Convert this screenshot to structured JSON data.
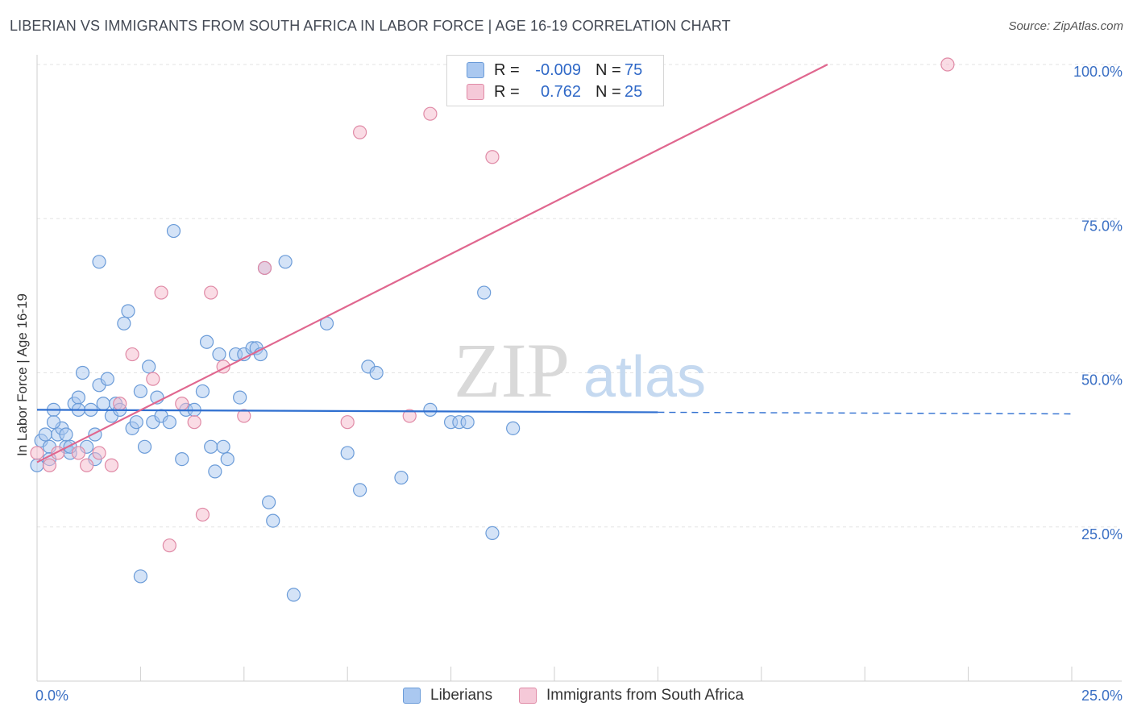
{
  "title": "LIBERIAN VS IMMIGRANTS FROM SOUTH AFRICA IN LABOR FORCE | AGE 16-19 CORRELATION CHART",
  "source": "Source: ZipAtlas.com",
  "watermark": {
    "zip": "ZIP",
    "atlas": "atlas"
  },
  "legend": {
    "rows": [
      {
        "r_label": "R =",
        "r_value": "-0.009",
        "n_label": "N =",
        "n_value": "75",
        "color": "#aac8f0"
      },
      {
        "r_label": "R =",
        "r_value": "0.762",
        "n_label": "N =",
        "n_value": "25",
        "color": "#f5b9cc"
      }
    ]
  },
  "bottom_legend": {
    "series1": "Liberians",
    "series2": "Immigrants from South Africa"
  },
  "chart_data": {
    "type": "scatter",
    "title": "LIBERIAN VS IMMIGRANTS FROM SOUTH AFRICA IN LABOR FORCE | AGE 16-19 CORRELATION CHART",
    "xlabel": "",
    "ylabel": "In Labor Force | Age 16-19",
    "xlim": [
      0,
      25
    ],
    "ylim": [
      0,
      100
    ],
    "x_tick_labels": [
      "0.0%",
      "25.0%"
    ],
    "y_ticks": [
      25,
      50,
      75,
      100
    ],
    "y_tick_labels": [
      "25.0%",
      "50.0%",
      "75.0%",
      "100.0%"
    ],
    "grid": true,
    "series": [
      {
        "name": "Liberians",
        "color": "#aac8f0",
        "stroke": "#6a9bd8",
        "line_color": "#2f6fd0",
        "trend": {
          "x0": 0,
          "y0": 44.0,
          "x1": 15,
          "y1": 43.6,
          "dash_to_x": 25
        },
        "points": [
          [
            0.0,
            35
          ],
          [
            0.1,
            39
          ],
          [
            0.2,
            40
          ],
          [
            0.3,
            38
          ],
          [
            0.4,
            44
          ],
          [
            0.5,
            40
          ],
          [
            0.6,
            41
          ],
          [
            0.7,
            38
          ],
          [
            0.8,
            37
          ],
          [
            0.9,
            45
          ],
          [
            1.0,
            46
          ],
          [
            1.1,
            50
          ],
          [
            1.0,
            44
          ],
          [
            1.2,
            38
          ],
          [
            1.3,
            44
          ],
          [
            1.4,
            36
          ],
          [
            1.5,
            48
          ],
          [
            1.6,
            45
          ],
          [
            1.7,
            49
          ],
          [
            1.8,
            43
          ],
          [
            1.5,
            68
          ],
          [
            1.9,
            45
          ],
          [
            2.0,
            44
          ],
          [
            2.1,
            58
          ],
          [
            2.2,
            60
          ],
          [
            2.3,
            41
          ],
          [
            2.4,
            42
          ],
          [
            2.5,
            47
          ],
          [
            2.6,
            38
          ],
          [
            2.7,
            51
          ],
          [
            2.8,
            42
          ],
          [
            2.9,
            46
          ],
          [
            3.0,
            43
          ],
          [
            3.2,
            42
          ],
          [
            3.3,
            73
          ],
          [
            3.5,
            36
          ],
          [
            3.6,
            44
          ],
          [
            3.8,
            44
          ],
          [
            4.0,
            47
          ],
          [
            4.1,
            55
          ],
          [
            4.2,
            38
          ],
          [
            4.3,
            34
          ],
          [
            4.4,
            53
          ],
          [
            4.5,
            38
          ],
          [
            4.6,
            36
          ],
          [
            4.8,
            53
          ],
          [
            4.9,
            46
          ],
          [
            5.0,
            53
          ],
          [
            5.2,
            54
          ],
          [
            5.3,
            54
          ],
          [
            5.4,
            53
          ],
          [
            5.5,
            67
          ],
          [
            5.6,
            29
          ],
          [
            5.7,
            26
          ],
          [
            6.0,
            68
          ],
          [
            6.2,
            14
          ],
          [
            7.0,
            58
          ],
          [
            7.5,
            37
          ],
          [
            7.8,
            31
          ],
          [
            8.0,
            51
          ],
          [
            8.2,
            50
          ],
          [
            8.8,
            33
          ],
          [
            9.5,
            44
          ],
          [
            10.0,
            42
          ],
          [
            10.2,
            42
          ],
          [
            10.4,
            42
          ],
          [
            10.8,
            63
          ],
          [
            11.0,
            24
          ],
          [
            11.5,
            41
          ],
          [
            0.7,
            40
          ],
          [
            1.4,
            40
          ],
          [
            2.5,
            17
          ],
          [
            0.8,
            38
          ],
          [
            0.3,
            36
          ],
          [
            0.4,
            42
          ]
        ]
      },
      {
        "name": "Immigrants from South Africa",
        "color": "#f5b9cc",
        "stroke": "#e08aa6",
        "line_color": "#e0678f",
        "trend": {
          "x0": 0,
          "y0": 35.5,
          "x1": 19.1,
          "y1": 100
        },
        "points": [
          [
            0.0,
            37
          ],
          [
            0.3,
            35
          ],
          [
            0.5,
            37
          ],
          [
            1.0,
            37
          ],
          [
            1.2,
            35
          ],
          [
            1.5,
            37
          ],
          [
            1.8,
            35
          ],
          [
            2.0,
            45
          ],
          [
            2.3,
            53
          ],
          [
            2.8,
            49
          ],
          [
            3.0,
            63
          ],
          [
            3.2,
            22
          ],
          [
            3.5,
            45
          ],
          [
            3.8,
            42
          ],
          [
            4.0,
            27
          ],
          [
            4.2,
            63
          ],
          [
            4.5,
            51
          ],
          [
            5.0,
            43
          ],
          [
            5.5,
            67
          ],
          [
            7.5,
            42
          ],
          [
            7.8,
            89
          ],
          [
            9.0,
            43
          ],
          [
            9.5,
            92
          ],
          [
            11.0,
            85
          ],
          [
            22.0,
            100
          ]
        ]
      }
    ]
  }
}
